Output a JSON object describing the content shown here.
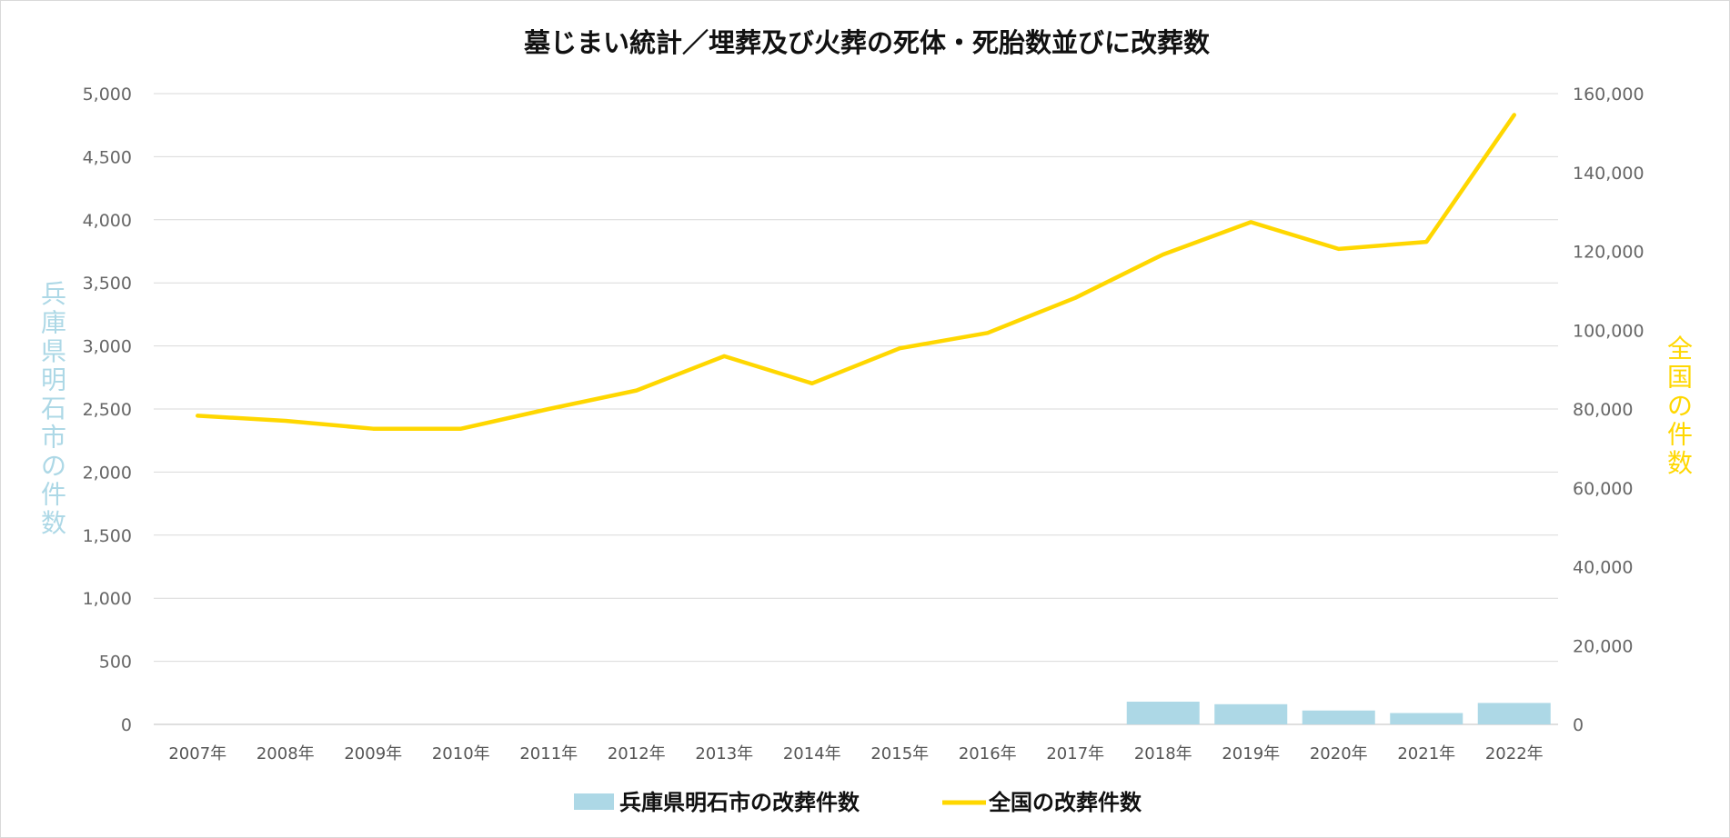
{
  "chart_data": {
    "type": "bar+line",
    "title": "墓じまい統計／埋葬及び火葬の死体・死胎数並びに改葬数",
    "categories": [
      "2007年",
      "2008年",
      "2009年",
      "2010年",
      "2011年",
      "2012年",
      "2013年",
      "2014年",
      "2015年",
      "2016年",
      "2017年",
      "2018年",
      "2019年",
      "2020年",
      "2021年",
      "2022年"
    ],
    "series": [
      {
        "name": "兵庫県明石市の改葬件数",
        "kind": "bar",
        "axis": "left",
        "color": "#add8e6",
        "values": [
          null,
          null,
          null,
          null,
          null,
          null,
          null,
          null,
          null,
          null,
          null,
          180,
          160,
          110,
          90,
          170
        ]
      },
      {
        "name": "全国の改葬件数",
        "kind": "line",
        "axis": "right",
        "color": "#ffd700",
        "values": [
          78300,
          77000,
          75000,
          75000,
          80000,
          84700,
          93400,
          86500,
          95400,
          99300,
          108200,
          119200,
          127400,
          120600,
          122400,
          154600
        ]
      }
    ],
    "y_left": {
      "label": "兵庫県明石市の件数",
      "min": 0,
      "max": 5000,
      "step": 500,
      "ticks": [
        "0",
        "500",
        "1,000",
        "1,500",
        "2,000",
        "2,500",
        "3,000",
        "3,500",
        "4,000",
        "4,500",
        "5,000"
      ],
      "label_color": "#add8e6"
    },
    "y_right": {
      "label": "全国の件数",
      "min": 0,
      "max": 160000,
      "step": 20000,
      "ticks": [
        "0",
        "20,000",
        "40,000",
        "60,000",
        "80,000",
        "100,000",
        "120,000",
        "140,000",
        "160,000"
      ],
      "label_color": "#ffd700"
    },
    "grid": true,
    "legend_position": "bottom"
  }
}
